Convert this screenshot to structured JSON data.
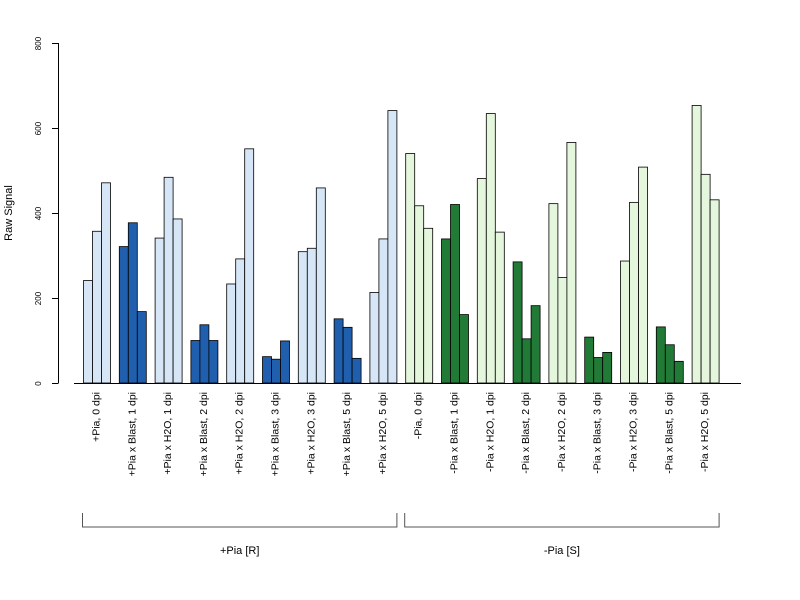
{
  "chart_data": {
    "type": "bar",
    "ylabel": "Raw Signal",
    "ylim": [
      0,
      800
    ],
    "yticks": [
      "0",
      "200",
      "400",
      "600",
      "800"
    ],
    "grid": false,
    "colors": {
      "light_blue": "#d6e6f6",
      "dark_blue": "#1f5fad",
      "light_green": "#e4f6dc",
      "dark_green": "#217a36",
      "stroke": "#000000"
    },
    "categories": [
      "+Pia, 0 dpi",
      "+Pia x Blast, 1 dpi",
      "+Pia x H2O, 1 dpi",
      "+Pia x Blast, 2 dpi",
      "+Pia x H2O, 2 dpi",
      "+Pia x Blast, 3 dpi",
      "+Pia x H2O, 3 dpi",
      "+Pia x Blast, 5 dpi",
      "+Pia x H2O, 5 dpi",
      "-Pia, 0 dpi",
      "-Pia x Blast, 1 dpi",
      "-Pia x H2O, 1 dpi",
      "-Pia x Blast, 2 dpi",
      "-Pia x H2O, 2 dpi",
      "-Pia x Blast, 3 dpi",
      "-Pia x H2O, 3 dpi",
      "-Pia x Blast, 5 dpi",
      "-Pia x H2O, 5 dpi"
    ],
    "bar_colors": [
      "light_blue",
      "dark_blue",
      "light_blue",
      "dark_blue",
      "light_blue",
      "dark_blue",
      "light_blue",
      "dark_blue",
      "light_blue",
      "light_green",
      "dark_green",
      "light_green",
      "dark_green",
      "light_green",
      "dark_green",
      "light_green",
      "dark_green",
      "light_green"
    ],
    "values": [
      [
        241,
        357,
        471
      ],
      [
        321,
        377,
        168
      ],
      [
        341,
        484,
        386
      ],
      [
        100,
        137,
        100
      ],
      [
        233,
        292,
        551
      ],
      [
        62,
        56,
        99
      ],
      [
        309,
        317,
        459
      ],
      [
        151,
        131,
        58
      ],
      [
        213,
        339,
        641
      ],
      [
        540,
        417,
        364
      ],
      [
        339,
        420,
        161
      ],
      [
        481,
        634,
        355
      ],
      [
        285,
        104,
        182
      ],
      [
        422,
        248,
        566
      ],
      [
        108,
        60,
        72
      ],
      [
        287,
        425,
        508
      ],
      [
        132,
        90,
        51
      ],
      [
        653,
        491,
        431
      ]
    ],
    "groups": [
      {
        "label": "+Pia [R]",
        "start": 0,
        "end": 8
      },
      {
        "label": "-Pia [S]",
        "start": 9,
        "end": 17
      }
    ]
  }
}
